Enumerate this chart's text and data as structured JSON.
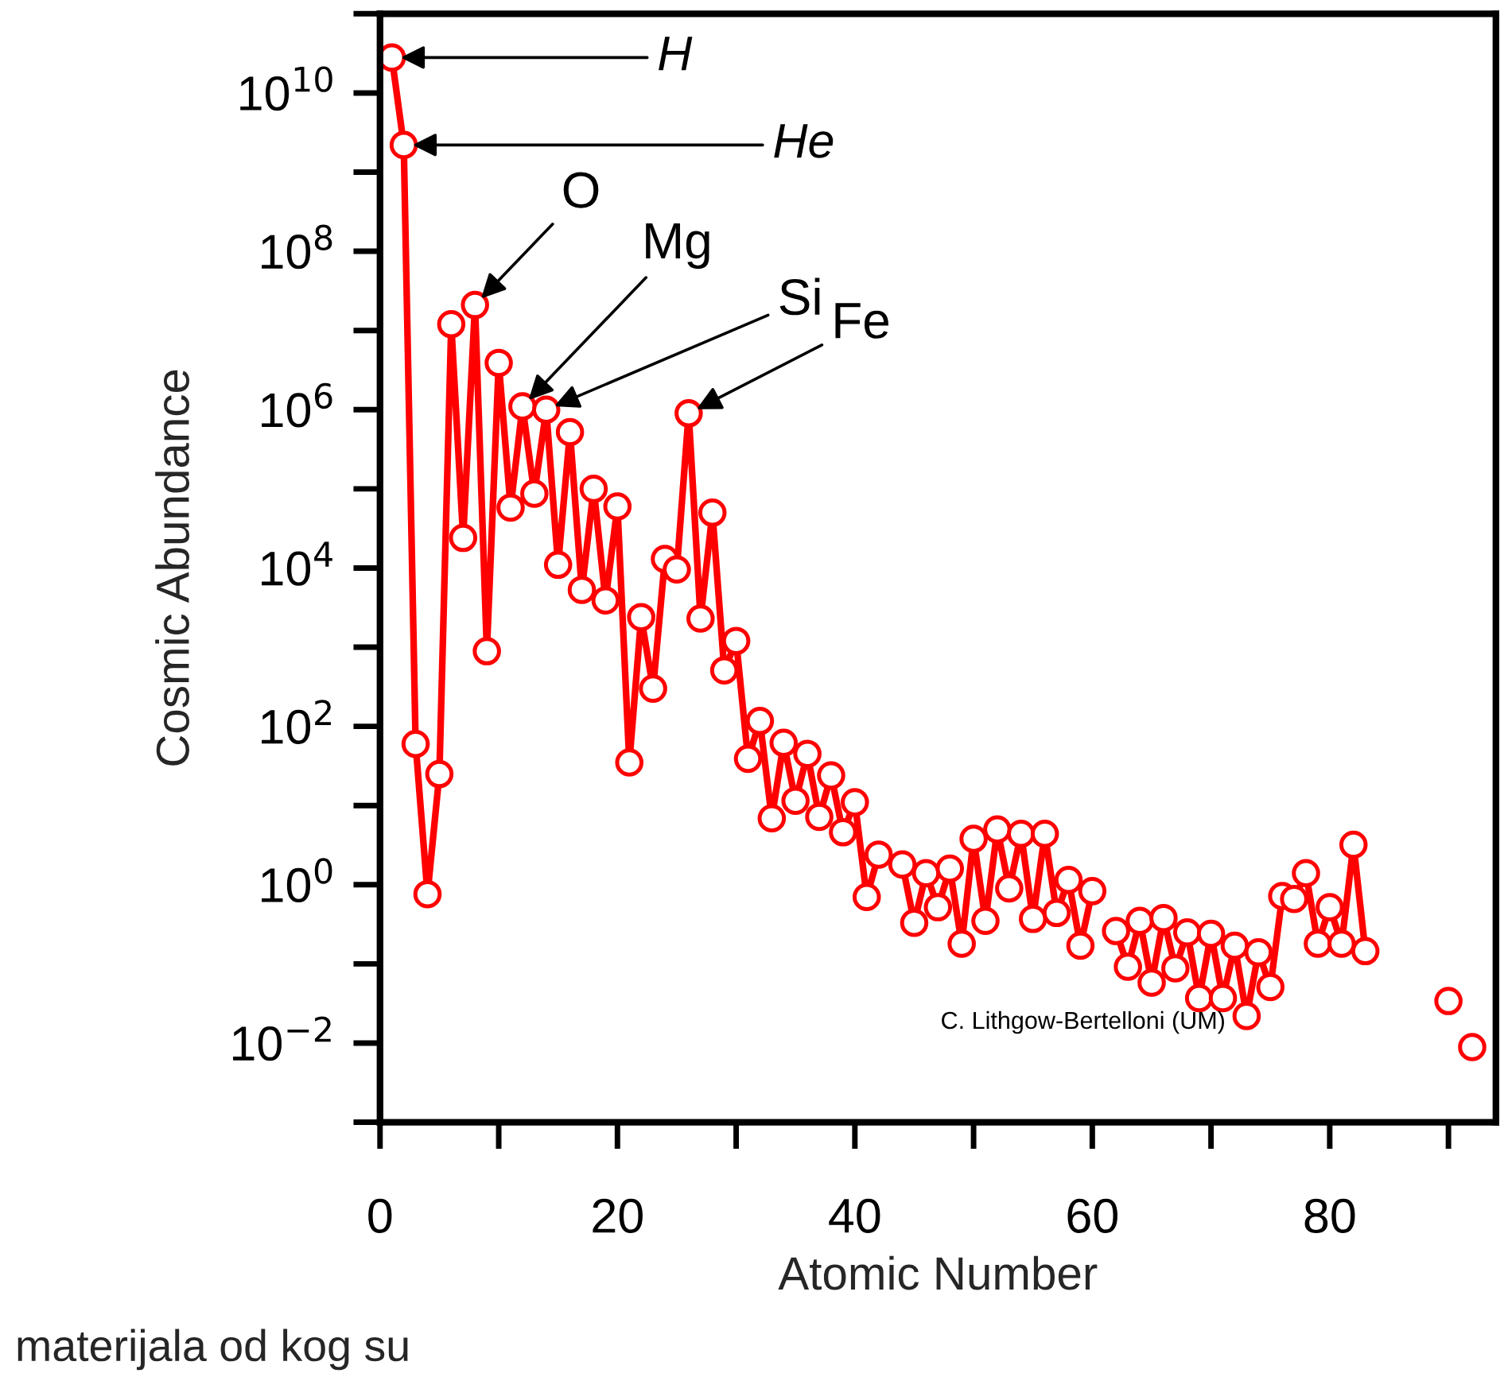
{
  "chart_data": {
    "type": "line",
    "xlabel": "Atomic Number",
    "ylabel": "Cosmic Abundance",
    "x": [
      1,
      2,
      3,
      4,
      5,
      6,
      7,
      8,
      9,
      10,
      11,
      12,
      13,
      14,
      15,
      16,
      17,
      18,
      19,
      20,
      21,
      22,
      23,
      24,
      25,
      26,
      27,
      28,
      29,
      30,
      31,
      32,
      33,
      34,
      35,
      36,
      37,
      38,
      39,
      40,
      41,
      42,
      44,
      45,
      46,
      47,
      48,
      49,
      50,
      51,
      52,
      53,
      54,
      55,
      56,
      57,
      58,
      59,
      60,
      61,
      62,
      63,
      64,
      65,
      66,
      67,
      68,
      69,
      70,
      71,
      72,
      73,
      74,
      75,
      76,
      77,
      78,
      79,
      80,
      81,
      82,
      83,
      84,
      90,
      91,
      92
    ],
    "series": [
      {
        "color": "#ff0000",
        "values": [
          28000000000.0,
          2200000000.0,
          60,
          0.76,
          25,
          12000000.0,
          24000.0,
          21000000.0,
          890,
          3900000.0,
          58000.0,
          1100000.0,
          87000.0,
          1000000.0,
          11000.0,
          520000.0,
          5300.0,
          100000.0,
          3900.0,
          60000.0,
          35,
          2400.0,
          300,
          13000.0,
          9600.0,
          900000.0,
          2300.0,
          50000.0,
          510,
          1200.0,
          39,
          117,
          6.9,
          62,
          11.5,
          45,
          7.2,
          24,
          4.6,
          11,
          0.7,
          2.4,
          1.8,
          0.33,
          1.4,
          0.52,
          1.6,
          0.18,
          3.8,
          0.35,
          5.0,
          0.9,
          4.4,
          0.37,
          4.4,
          0.44,
          1.15,
          0.17,
          0.83,
          null,
          0.26,
          0.092,
          0.35,
          0.058,
          0.38,
          0.088,
          0.25,
          0.037,
          0.24,
          0.037,
          0.17,
          0.022,
          0.14,
          0.051,
          0.72,
          0.66,
          1.4,
          0.18,
          0.52,
          0.18,
          3.2,
          0.145,
          null,
          0.034,
          null,
          0.0089
        ]
      }
    ],
    "log": true,
    "marker": "circle",
    "line_style": "solid",
    "grid": false,
    "legend": false,
    "xlim": [
      0,
      94
    ],
    "xticks": [
      0,
      20,
      40,
      60,
      80
    ],
    "ylim": [
      0.001,
      100000000000.0
    ],
    "yticks": [
      {
        "value": 0.01,
        "label": "10$^{−2}$"
      },
      {
        "value": 1,
        "label": "10$^{0}$"
      },
      {
        "value": 100,
        "label": "10$^{2}$"
      },
      {
        "value": 10000,
        "label": "10$^{4}$"
      },
      {
        "value": 1000000,
        "label": "10$^{6}$"
      },
      {
        "value": 100000000,
        "label": "10$^{8}$"
      },
      {
        "value": 10000000000,
        "label": "10$^{10}$"
      }
    ],
    "annotations": [
      {
        "text": "H",
        "x": 1,
        "y": 28000000000.0
      },
      {
        "text": "He",
        "x": 2,
        "y": 2200000000.0
      },
      {
        "text": "O",
        "x": 8,
        "y": 21000000.0
      },
      {
        "text": "Mg",
        "x": 12,
        "y": 1100000.0
      },
      {
        "text": "Si",
        "x": 14,
        "y": 1000000.0
      },
      {
        "text": "Fe",
        "x": 26,
        "y": 900000.0
      },
      "C. Lithgow-Bertelloni (UM)",
      "materijala od kog su"
    ]
  }
}
